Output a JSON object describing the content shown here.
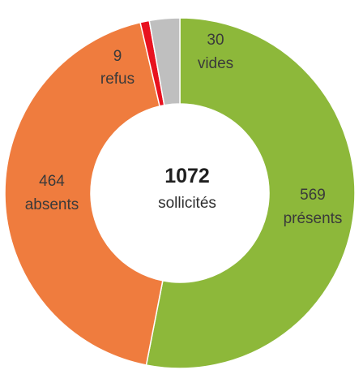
{
  "chart_data": {
    "type": "pie",
    "donut": true,
    "center": {
      "value": "1072",
      "label": "sollicités"
    },
    "slices": [
      {
        "value": "569",
        "label": "présents",
        "color": "#8db83a"
      },
      {
        "value": "464",
        "label": "absents",
        "color": "#ef7c3e"
      },
      {
        "value": "9",
        "label": "refus",
        "color": "#e8121f"
      },
      {
        "value": "30",
        "label": "vides",
        "color": "#bfbfbf"
      }
    ]
  }
}
